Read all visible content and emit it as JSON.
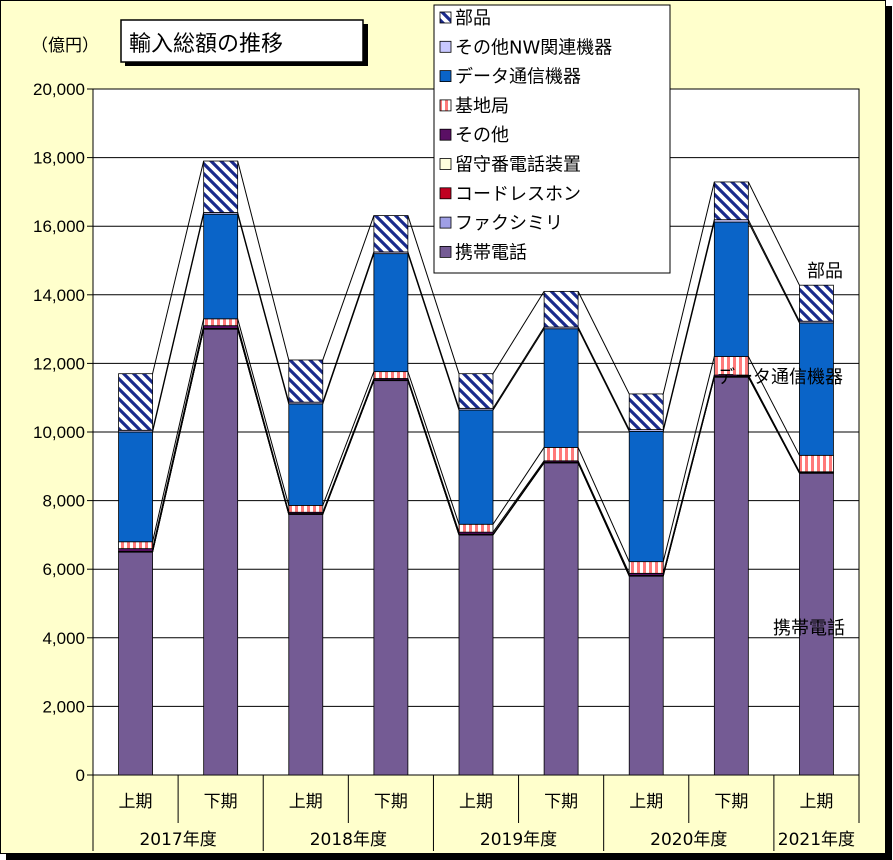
{
  "chart_data": {
    "type": "bar",
    "stacked": true,
    "title": "輸入総額の推移",
    "unit_label": "（億円）",
    "ylim": [
      0,
      20000
    ],
    "yticks": [
      "0",
      "2,000",
      "4,000",
      "6,000",
      "8,000",
      "10,000",
      "12,000",
      "14,000",
      "16,000",
      "18,000",
      "20,000"
    ],
    "categories": [
      "上期",
      "下期",
      "上期",
      "下期",
      "上期",
      "下期",
      "上期",
      "下期",
      "上期"
    ],
    "years": [
      "2017年度",
      "2018年度",
      "2019年度",
      "2020年度",
      "2021年度"
    ],
    "grid": true,
    "legend_position": "top-right",
    "series": [
      {
        "name": "携帯電話",
        "color": "#745b94",
        "values": [
          6500,
          13000,
          7600,
          11500,
          7000,
          9100,
          5800,
          11600,
          8800
        ]
      },
      {
        "name": "ファクシミリ",
        "color": "#9f9fe5",
        "values": [
          0,
          0,
          0,
          0,
          0,
          0,
          0,
          0,
          0
        ]
      },
      {
        "name": "コードレスホン",
        "color": "#c00020",
        "values": [
          10,
          10,
          10,
          10,
          10,
          10,
          10,
          10,
          10
        ]
      },
      {
        "name": "留守番電話装置",
        "color": "#ffffdd",
        "values": [
          10,
          10,
          10,
          10,
          10,
          10,
          10,
          10,
          10
        ]
      },
      {
        "name": "その他",
        "color": "#5a0f64",
        "values": [
          80,
          80,
          40,
          40,
          60,
          40,
          60,
          40,
          20
        ]
      },
      {
        "name": "基地局",
        "color": "#ff9a9a",
        "values": [
          200,
          200,
          200,
          200,
          230,
          390,
          340,
          540,
          480
        ]
      },
      {
        "name": "データ通信機器",
        "color": "#0a64c8",
        "values": [
          3200,
          3050,
          2960,
          3440,
          3330,
          3460,
          3800,
          3920,
          3860
        ]
      },
      {
        "name": "その他NW関連機器",
        "color": "#c8c8ff",
        "values": [
          50,
          50,
          50,
          50,
          50,
          50,
          50,
          70,
          50
        ]
      },
      {
        "name": "部品",
        "color": "#1a2a8c",
        "values": [
          1650,
          1500,
          1230,
          1060,
          1010,
          1040,
          1040,
          1100,
          1050
        ]
      }
    ],
    "annotations": [
      "部品",
      "データ通信機器",
      "携帯電話"
    ]
  }
}
